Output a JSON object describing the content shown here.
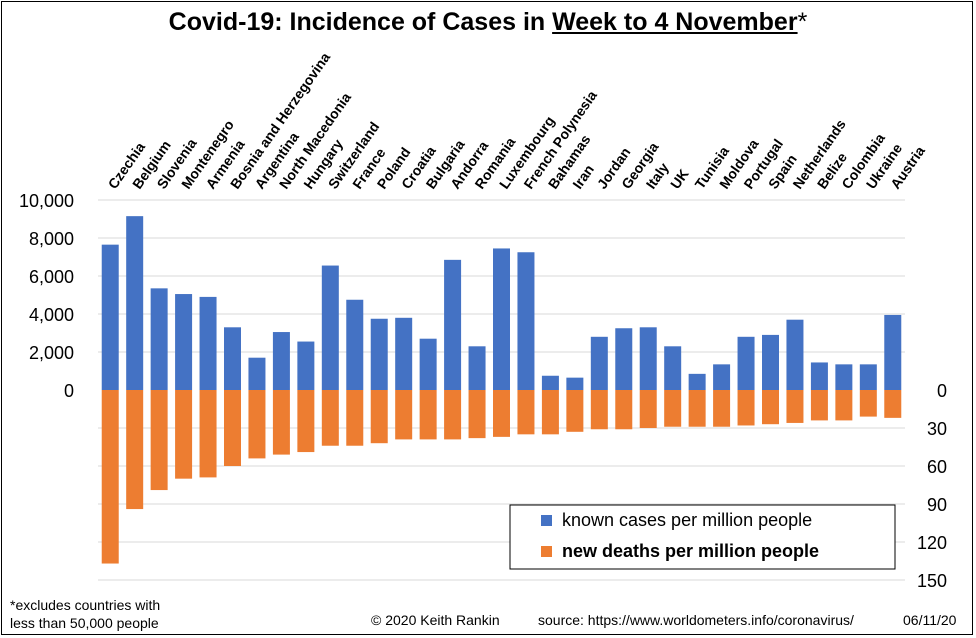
{
  "title": {
    "prefix": "Covid-19: Incidence of Cases in ",
    "underlined": "Week to 4 November",
    "suffix": "*"
  },
  "footer": {
    "note_line1": "*excludes countries with",
    "note_line2": "less than 50,000 people",
    "copyright": "© 2020  Keith Rankin",
    "source": "source: https://www.worldometers.info/coronavirus/",
    "date": "06/11/20"
  },
  "colors": {
    "cases": "#4472C4",
    "deaths": "#ED7D31",
    "grid": "#D9D9D9"
  },
  "chart_data": {
    "type": "bar",
    "categories": [
      "Czechia",
      "Belgium",
      "Slovenia",
      "Montenegro",
      "Armenia",
      "Bosnia and Herzegovina",
      "Argentina",
      "North Macedonia",
      "Hungary",
      "Switzerland",
      "France",
      "Poland",
      "Croatia",
      "Bulgaria",
      "Andorra",
      "Romania",
      "Luxembourg",
      "French Polynesia",
      "Bahamas",
      "Iran",
      "Jordan",
      "Georgia",
      "Italy",
      "UK",
      "Tunisia",
      "Moldova",
      "Portugal",
      "Spain",
      "Netherlands",
      "Belize",
      "Colombia",
      "Ukraine",
      "Austria"
    ],
    "series": [
      {
        "name": "known cases per million people",
        "axis": "left",
        "values": [
          7650,
          9150,
          5350,
          5050,
          4900,
          3300,
          1700,
          3050,
          2550,
          6550,
          4750,
          3750,
          3800,
          2700,
          6850,
          2300,
          7450,
          7250,
          750,
          650,
          2800,
          3250,
          3300,
          2300,
          850,
          1350,
          2800,
          2900,
          3700,
          1450,
          1350,
          1350,
          3950
        ]
      },
      {
        "name": "new deaths per million people",
        "axis": "right",
        "values": [
          137,
          94,
          79,
          70,
          69,
          60,
          54,
          51,
          49,
          44,
          44,
          42,
          39,
          39,
          39,
          38,
          37,
          35,
          35,
          33,
          31,
          31,
          30,
          29,
          29,
          29,
          28,
          27,
          26,
          24,
          24,
          21,
          22
        ]
      }
    ],
    "left_axis": {
      "ticks": [
        "10,000",
        "8,000",
        "6,000",
        "4,000",
        "2,000",
        "0"
      ],
      "range": [
        0,
        10000
      ]
    },
    "right_axis": {
      "ticks": [
        "0",
        "30",
        "60",
        "90",
        "120",
        "150"
      ],
      "range": [
        0,
        150
      ],
      "inverted": true
    },
    "grid": true,
    "legend_position": "bottom-right"
  }
}
